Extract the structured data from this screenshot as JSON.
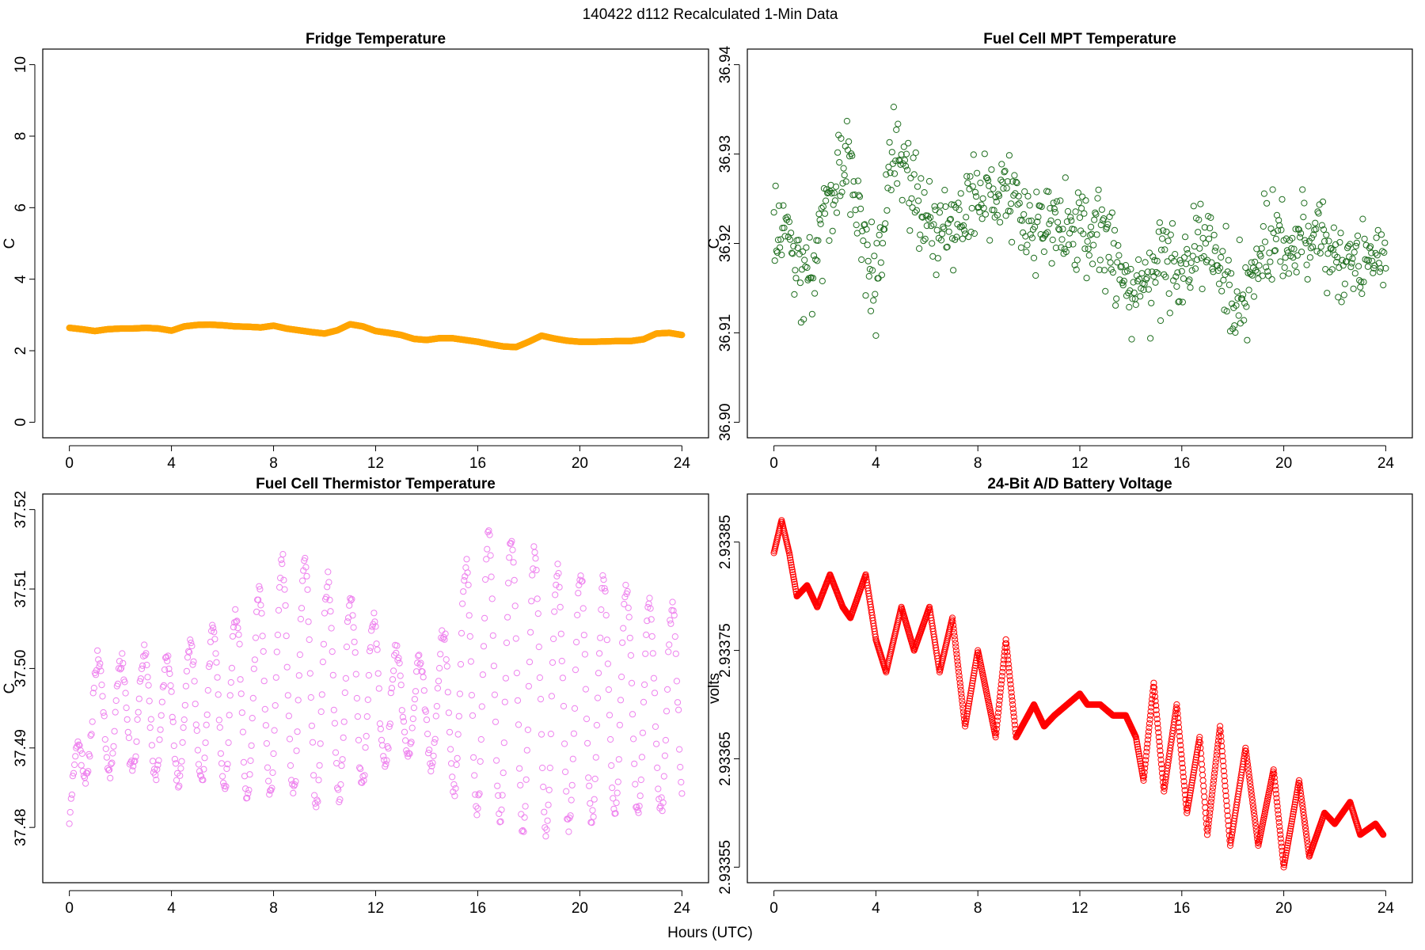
{
  "figure": {
    "title": "140422   d112   Recalculated 1-Min Data",
    "xlabel": "Hours (UTC)"
  },
  "chart_data": [
    {
      "type": "scatter",
      "title": "Fridge Temperature",
      "ylabel": "C",
      "color": "#FFA500",
      "xlim": [
        0,
        24
      ],
      "ylim": [
        0,
        10
      ],
      "xticks": [
        0,
        4,
        8,
        12,
        16,
        20,
        24
      ],
      "yticks": [
        0,
        2,
        4,
        6,
        8,
        10
      ],
      "ytick_labels": [
        "0",
        "2",
        "4",
        "6",
        "8",
        "10"
      ],
      "pattern": "smooth",
      "x": [
        0,
        0.5,
        1,
        1.5,
        2,
        2.5,
        3,
        3.5,
        4,
        4.5,
        5,
        5.5,
        6,
        6.5,
        7,
        7.5,
        8,
        8.5,
        9,
        9.5,
        10,
        10.5,
        11,
        11.5,
        12,
        12.5,
        13,
        13.5,
        14,
        14.5,
        15,
        15.5,
        16,
        16.5,
        17,
        17.5,
        18,
        18.5,
        19,
        19.5,
        20,
        20.5,
        21,
        21.5,
        22,
        22.5,
        23,
        23.5,
        24
      ],
      "y": [
        2.64,
        2.6,
        2.55,
        2.6,
        2.62,
        2.62,
        2.64,
        2.62,
        2.56,
        2.68,
        2.72,
        2.73,
        2.71,
        2.68,
        2.67,
        2.65,
        2.7,
        2.62,
        2.57,
        2.52,
        2.48,
        2.57,
        2.74,
        2.68,
        2.55,
        2.5,
        2.44,
        2.33,
        2.3,
        2.35,
        2.35,
        2.3,
        2.25,
        2.18,
        2.12,
        2.1,
        2.25,
        2.42,
        2.34,
        2.28,
        2.25,
        2.25,
        2.26,
        2.27,
        2.27,
        2.32,
        2.48,
        2.5,
        2.44
      ]
    },
    {
      "type": "scatter",
      "title": "Fuel Cell MPT Temperature",
      "ylabel": "C",
      "color": "#1F6E1F",
      "xlim": [
        0,
        24
      ],
      "ylim": [
        36.9,
        36.94
      ],
      "xticks": [
        0,
        4,
        8,
        12,
        16,
        20,
        24
      ],
      "yticks": [
        36.9,
        36.91,
        36.92,
        36.93,
        36.94
      ],
      "ytick_labels": [
        "36.90",
        "36.91",
        "36.92",
        "36.93",
        "36.94"
      ],
      "pattern": "noise",
      "amp": 0.0105,
      "x": [
        0,
        0.5,
        1,
        1.5,
        2,
        2.5,
        3,
        3.5,
        4,
        4.5,
        5,
        5.5,
        6,
        6.5,
        7,
        7.5,
        8,
        8.5,
        9,
        9.5,
        10,
        10.5,
        11,
        11.5,
        12,
        12.5,
        13,
        13.5,
        14,
        14.5,
        15,
        15.5,
        16,
        16.5,
        17,
        17.5,
        18,
        18.5,
        19,
        19.5,
        20,
        20.5,
        21,
        21.5,
        22,
        22.5,
        23,
        23.5,
        24
      ],
      "y": [
        36.922,
        36.921,
        36.918,
        36.916,
        36.924,
        36.927,
        36.928,
        36.921,
        36.915,
        36.928,
        36.93,
        36.925,
        36.922,
        36.921,
        36.923,
        36.924,
        36.926,
        36.926,
        36.925,
        36.924,
        36.922,
        36.922,
        36.922,
        36.921,
        36.923,
        36.921,
        36.92,
        36.918,
        36.914,
        36.915,
        36.917,
        36.918,
        36.917,
        36.918,
        36.92,
        36.918,
        36.914,
        36.913,
        36.918,
        36.92,
        36.92,
        36.919,
        36.921,
        36.92,
        36.918,
        36.917,
        36.917,
        36.918,
        36.919
      ]
    },
    {
      "type": "scatter",
      "title": "Fuel Cell Thermistor Temperature",
      "ylabel": "C",
      "color": "#EE82EE",
      "xlim": [
        0,
        24
      ],
      "ylim": [
        37.475,
        37.52
      ],
      "xticks": [
        0,
        4,
        8,
        12,
        16,
        20,
        24
      ],
      "yticks": [
        37.48,
        37.49,
        37.5,
        37.51,
        37.52
      ],
      "ytick_labels": [
        "37.48",
        "37.49",
        "37.50",
        "37.51",
        "37.52"
      ],
      "pattern": "oscillation",
      "period": 0.9,
      "x": [
        0,
        0.5,
        1,
        1.5,
        2,
        2.5,
        3,
        3.5,
        4,
        4.5,
        5,
        5.5,
        6,
        6.5,
        7,
        7.5,
        8,
        8.5,
        9,
        9.5,
        10,
        10.5,
        11,
        11.5,
        12,
        12.5,
        13,
        13.5,
        14,
        14.5,
        15,
        15.5,
        16,
        16.5,
        17,
        17.5,
        18,
        18.5,
        19,
        19.5,
        20,
        20.5,
        21,
        21.5,
        22,
        22.5,
        23,
        23.5,
        24
      ],
      "y": [
        37.481,
        37.49,
        37.495,
        37.494,
        37.494,
        37.494,
        37.495,
        37.494,
        37.493,
        37.494,
        37.495,
        37.495,
        37.495,
        37.496,
        37.496,
        37.497,
        37.498,
        37.499,
        37.499,
        37.498,
        37.497,
        37.497,
        37.497,
        37.497,
        37.496,
        37.496,
        37.495,
        37.495,
        37.495,
        37.495,
        37.497,
        37.498,
        37.499,
        37.499,
        37.499,
        37.498,
        37.497,
        37.497,
        37.496,
        37.496,
        37.496,
        37.496,
        37.496,
        37.496,
        37.496,
        37.495,
        37.495,
        37.495,
        37.495
      ],
      "amp": [
        0.003,
        0.005,
        0.006,
        0.007,
        0.007,
        0.007,
        0.007,
        0.008,
        0.008,
        0.008,
        0.009,
        0.01,
        0.01,
        0.011,
        0.012,
        0.013,
        0.014,
        0.015,
        0.015,
        0.015,
        0.014,
        0.013,
        0.012,
        0.011,
        0.01,
        0.008,
        0.007,
        0.006,
        0.006,
        0.008,
        0.012,
        0.015,
        0.017,
        0.018,
        0.018,
        0.018,
        0.018,
        0.017,
        0.017,
        0.016,
        0.016,
        0.015,
        0.015,
        0.015,
        0.014,
        0.014,
        0.013,
        0.013,
        0.012
      ]
    },
    {
      "type": "scatter",
      "title": "24-Bit A/D Battery Voltage",
      "ylabel": "volts",
      "color": "#FF0000",
      "xlim": [
        0,
        24
      ],
      "ylim": [
        2.93355,
        2.93388
      ],
      "xticks": [
        0,
        4,
        8,
        12,
        16,
        20,
        24
      ],
      "yticks": [
        2.93355,
        2.93365,
        2.93375,
        2.93385
      ],
      "ytick_labels": [
        "2.93355",
        "2.93365",
        "2.93375",
        "2.93385"
      ],
      "pattern": "smooth",
      "x": [
        0,
        0.3,
        0.6,
        0.9,
        1.3,
        1.7,
        2.2,
        2.7,
        3.0,
        3.6,
        4.0,
        4.4,
        5.0,
        5.5,
        6.1,
        6.5,
        7.0,
        7.5,
        8.0,
        8.7,
        9.1,
        9.5,
        10.2,
        10.6,
        11.0,
        11.5,
        12.0,
        12.3,
        12.8,
        13.3,
        13.8,
        14.2,
        14.5,
        14.9,
        15.3,
        15.8,
        16.2,
        16.7,
        17.0,
        17.5,
        17.9,
        18.5,
        19.0,
        19.6,
        20.0,
        20.6,
        21.0,
        21.6,
        22.0,
        22.6,
        23.0,
        23.6,
        23.9
      ],
      "y": [
        2.93384,
        2.93387,
        2.93384,
        2.9338,
        2.93381,
        2.93379,
        2.93382,
        2.93379,
        2.93378,
        2.93382,
        2.93376,
        2.93373,
        2.93379,
        2.93375,
        2.93379,
        2.93373,
        2.93378,
        2.93368,
        2.93375,
        2.93367,
        2.93376,
        2.93367,
        2.9337,
        2.93368,
        2.93369,
        2.9337,
        2.93371,
        2.9337,
        2.9337,
        2.93369,
        2.93369,
        2.93367,
        2.93363,
        2.93372,
        2.93362,
        2.9337,
        2.9336,
        2.93367,
        2.93358,
        2.93368,
        2.93357,
        2.93366,
        2.93357,
        2.93364,
        2.93355,
        2.93363,
        2.93356,
        2.9336,
        2.93359,
        2.93361,
        2.93358,
        2.93359,
        2.93358
      ]
    }
  ]
}
